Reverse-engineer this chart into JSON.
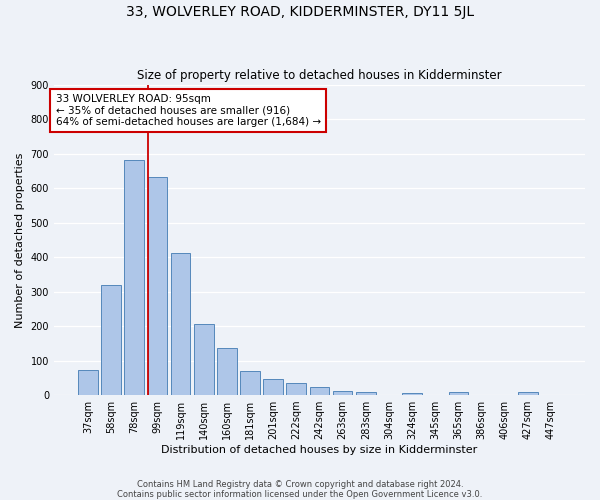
{
  "title": "33, WOLVERLEY ROAD, KIDDERMINSTER, DY11 5JL",
  "subtitle": "Size of property relative to detached houses in Kidderminster",
  "xlabel": "Distribution of detached houses by size in Kidderminster",
  "ylabel": "Number of detached properties",
  "categories": [
    "37sqm",
    "58sqm",
    "78sqm",
    "99sqm",
    "119sqm",
    "140sqm",
    "160sqm",
    "181sqm",
    "201sqm",
    "222sqm",
    "242sqm",
    "263sqm",
    "283sqm",
    "304sqm",
    "324sqm",
    "345sqm",
    "365sqm",
    "386sqm",
    "406sqm",
    "427sqm",
    "447sqm"
  ],
  "values": [
    72,
    320,
    680,
    632,
    412,
    207,
    136,
    70,
    48,
    36,
    24,
    12,
    8,
    0,
    5,
    0,
    8,
    0,
    0,
    8,
    0
  ],
  "bar_color": "#aec6e8",
  "bar_edge_color": "#5588bb",
  "vline_x_index": 3,
  "vline_color": "#cc0000",
  "annotation_text": "33 WOLVERLEY ROAD: 95sqm\n← 35% of detached houses are smaller (916)\n64% of semi-detached houses are larger (1,684) →",
  "annotation_box_color": "#ffffff",
  "annotation_box_edge": "#cc0000",
  "ylim": [
    0,
    900
  ],
  "yticks": [
    0,
    100,
    200,
    300,
    400,
    500,
    600,
    700,
    800,
    900
  ],
  "footer": "Contains HM Land Registry data © Crown copyright and database right 2024.\nContains public sector information licensed under the Open Government Licence v3.0.",
  "bg_color": "#eef2f8",
  "grid_color": "#ffffff",
  "title_fontsize": 10,
  "subtitle_fontsize": 8.5,
  "ylabel_fontsize": 8,
  "xlabel_fontsize": 8,
  "tick_fontsize": 7,
  "annotation_fontsize": 7.5,
  "footer_fontsize": 6
}
